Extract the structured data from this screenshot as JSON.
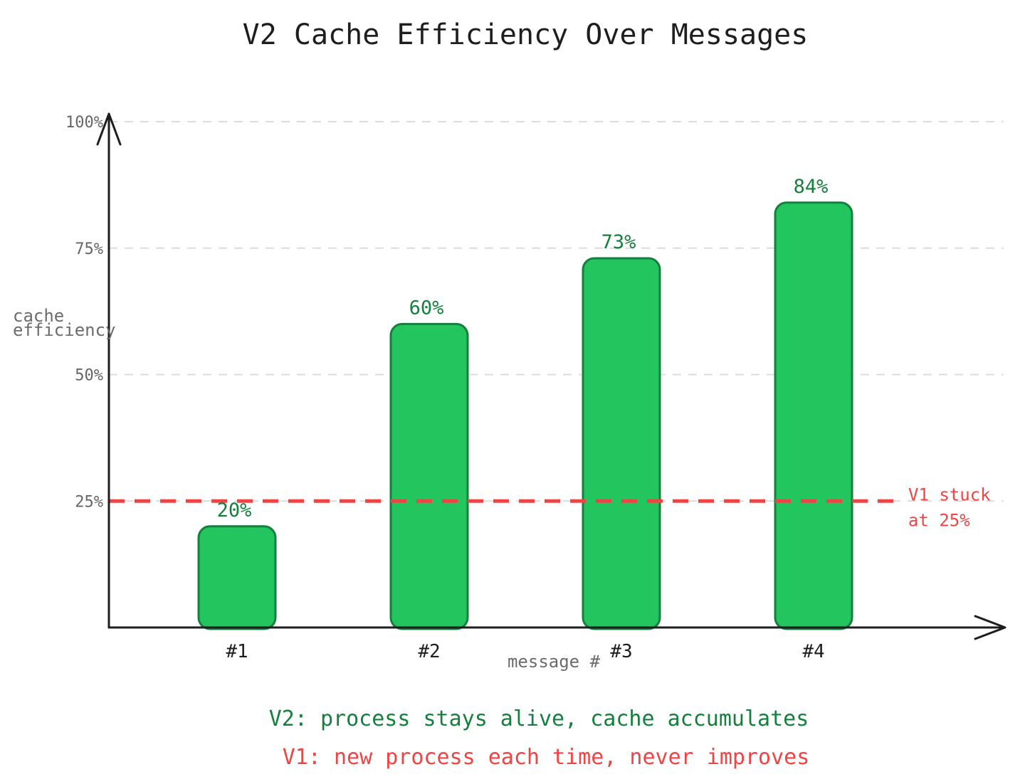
{
  "chart_data": {
    "type": "bar",
    "title": "V2 Cache Efficiency Over Messages",
    "xlabel": "message #",
    "ylabel_lines": [
      "cache",
      "efficiency"
    ],
    "categories": [
      "#1",
      "#2",
      "#3",
      "#4"
    ],
    "values": [
      20,
      60,
      73,
      84
    ],
    "data_labels": [
      "20%",
      "60%",
      "73%",
      "84%"
    ],
    "ylim": [
      0,
      100
    ],
    "yticks": [
      25,
      50,
      75,
      100
    ],
    "ytick_labels": [
      "25%",
      "50%",
      "75%",
      "100%"
    ],
    "grid": true,
    "reference_line": {
      "value": 25,
      "label_lines": [
        "V1 stuck",
        "at 25%"
      ],
      "color": "#ef4444",
      "style": "dashed"
    },
    "bar_color": "#22c55e",
    "bar_stroke": "#15803d"
  },
  "notes": {
    "v2": "V2: process stays alive, cache accumulates",
    "v1": "V1: new process each time, never improves"
  },
  "colors": {
    "v2_note": "#15803d",
    "v1_note": "#ef4444"
  }
}
